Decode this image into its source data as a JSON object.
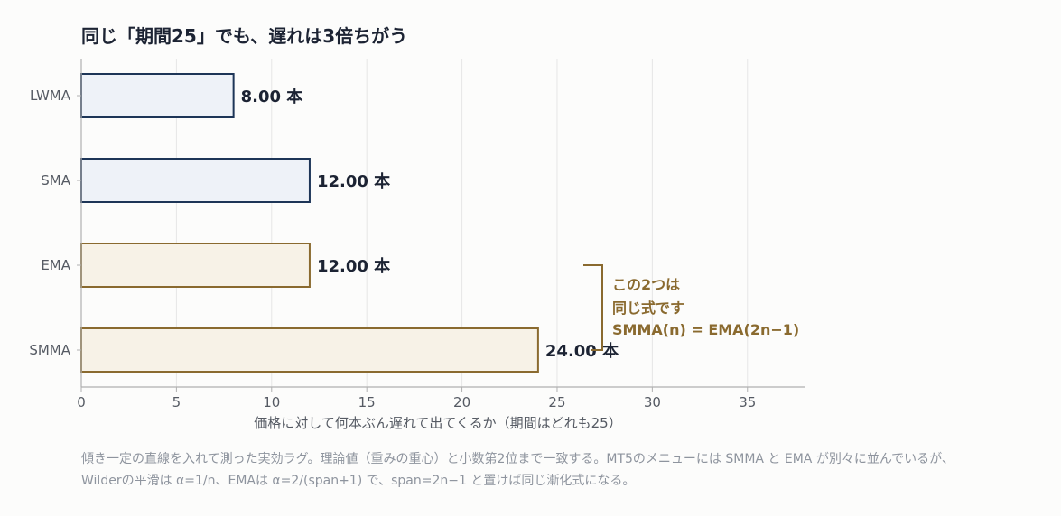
{
  "chart_data": {
    "type": "bar",
    "orientation": "horizontal",
    "title": "同じ「期間25」でも、遅れは3倍ちがう",
    "xlabel": "価格に対して何本ぶん遅れて出てくるか（期間はどれも25）",
    "ylabel": "",
    "xlim": [
      0,
      38
    ],
    "xticks": [
      0,
      5,
      10,
      15,
      20,
      25,
      30,
      35
    ],
    "grid": "vertical",
    "categories": [
      "LWMA",
      "SMA",
      "EMA",
      "SMMA"
    ],
    "values": [
      8.0,
      12.0,
      12.0,
      24.0
    ],
    "value_labels": [
      "8.00 本",
      "12.00 本",
      "12.00 本",
      "24.00 本"
    ],
    "bar_fill_colors": [
      "#eef2f8",
      "#eef2f8",
      "#f7f2e7",
      "#f7f2e7"
    ],
    "bar_edge_colors": [
      "#1d3557",
      "#1d3557",
      "#8a6a2f",
      "#8a6a2f"
    ],
    "annotation": {
      "lines": [
        "この2つは",
        "同じ式です",
        "SMMA(n) = EMA(2n−1)"
      ],
      "color": "#8a6a2f",
      "brackets": [
        "EMA",
        "SMMA"
      ]
    }
  },
  "colors": {
    "axis": "#b0b0b0",
    "grid": "#e6e6e6",
    "tick_text": "#555a63",
    "value_text": "#1c2333",
    "note_text": "#8e949e"
  },
  "note": {
    "line1": "傾き一定の直線を入れて測った実効ラグ。理論値（重みの重心）と小数第2位まで一致する。MT5のメニューには SMMA と EMA が別々に並んでいるが、",
    "line2": "Wilderの平滑は α=1/n、EMAは α=2/(span+1) で、span=2n−1 と置けば同じ漸化式になる。"
  }
}
